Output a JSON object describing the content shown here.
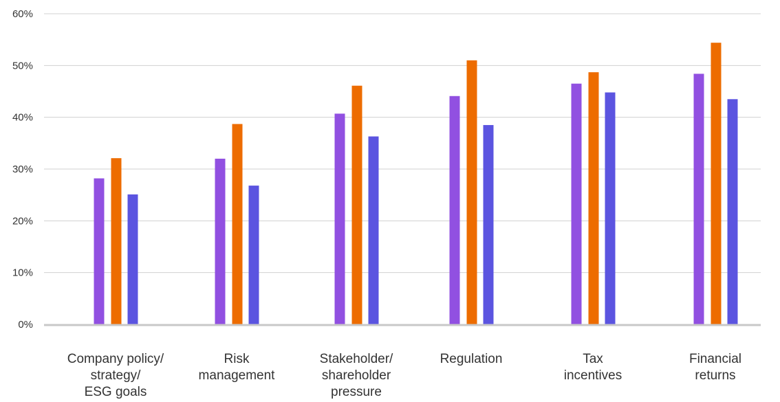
{
  "chart_data": {
    "type": "bar",
    "title": "",
    "xlabel": "",
    "ylabel": "",
    "ylim": [
      0,
      60
    ],
    "yticks": [
      0,
      10,
      20,
      30,
      40,
      50,
      60
    ],
    "ytick_labels": [
      "0%",
      "10%",
      "20%",
      "30%",
      "40%",
      "50%",
      "60%"
    ],
    "grid": true,
    "legend": "none",
    "categories": [
      [
        "Company policy/",
        "strategy/",
        "ESG goals"
      ],
      [
        "Risk",
        "management"
      ],
      [
        "Stakeholder/",
        "shareholder",
        "pressure"
      ],
      [
        "Regulation"
      ],
      [
        "Tax",
        "incentives"
      ],
      [
        "Financial",
        "returns"
      ]
    ],
    "series": [
      {
        "color": "#9150e1",
        "values": [
          28.2,
          32.0,
          40.7,
          44.1,
          46.5,
          48.4
        ]
      },
      {
        "color": "#ed6c00",
        "values": [
          32.1,
          38.7,
          46.1,
          51.0,
          48.7,
          54.4
        ]
      },
      {
        "color": "#5b54e0",
        "values": [
          25.1,
          26.8,
          36.3,
          38.5,
          44.8,
          43.5
        ]
      }
    ]
  }
}
